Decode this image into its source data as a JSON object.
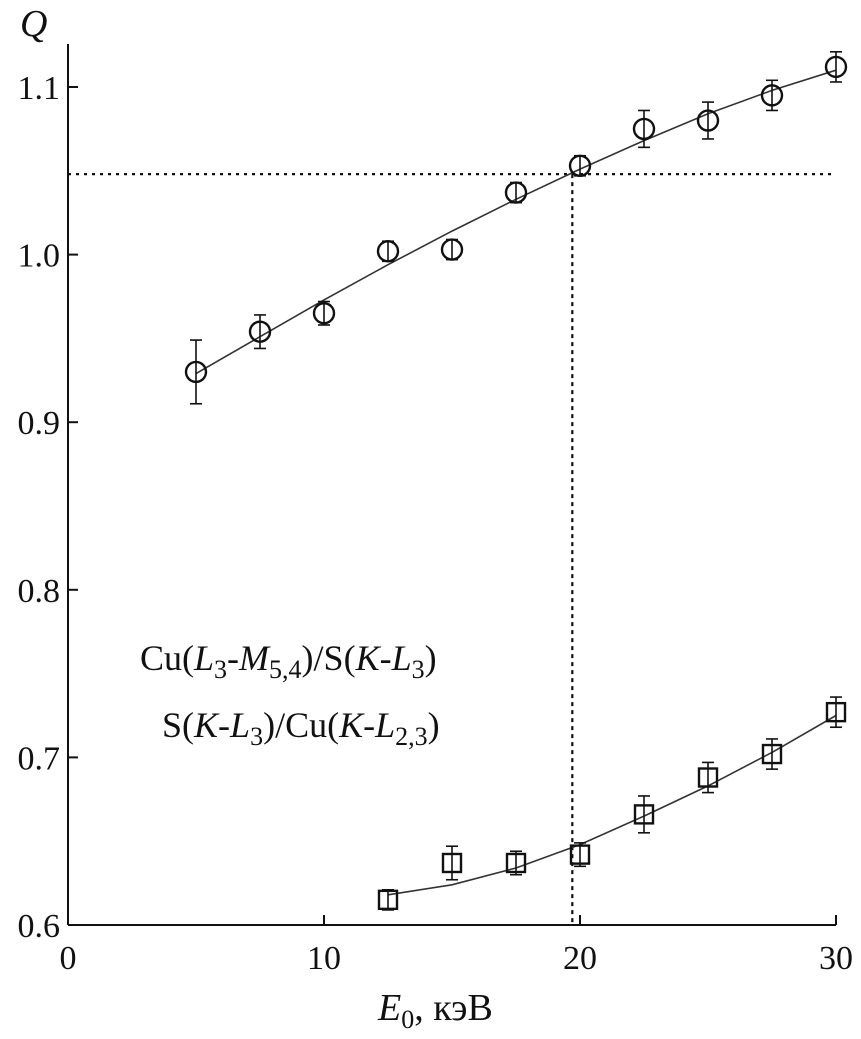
{
  "chart_data": {
    "type": "scatter",
    "xlabel": {
      "main": "E",
      "sub": "0",
      "unit": ", кэВ"
    },
    "ylabel": "Q",
    "xlim": [
      0,
      30
    ],
    "ylim": [
      0.6,
      1.12
    ],
    "x_ticks": [
      "0",
      "10",
      "20",
      "30"
    ],
    "y_ticks": [
      "0.6",
      "0.7",
      "0.8",
      "0.9",
      "1.0",
      "1.1"
    ],
    "reference_lines": {
      "horizontal_y": 1.048,
      "vertical_x": 19.7
    },
    "legend": [
      "Cu(L3-M5,4)/S(K-L3)",
      "S(K-L3)/Cu(K-L2,3)"
    ],
    "series": [
      {
        "name": "Cu(L3-M5,4)/S(K-L3)",
        "marker": "circle",
        "x": [
          5,
          7.5,
          10,
          12.5,
          15,
          17.5,
          20,
          22.5,
          25,
          27.5,
          30
        ],
        "y": [
          0.93,
          0.954,
          0.965,
          1.002,
          1.003,
          1.037,
          1.053,
          1.075,
          1.08,
          1.095,
          1.112
        ],
        "err": [
          0.019,
          0.01,
          0.007,
          0.006,
          0.006,
          0.006,
          0.006,
          0.011,
          0.011,
          0.009,
          0.009
        ],
        "fit": {
          "x": [
            5,
            7.5,
            10,
            12.5,
            15,
            17.5,
            20,
            22.5,
            25,
            27.5,
            30
          ],
          "y": [
            0.929,
            0.951,
            0.973,
            0.994,
            1.014,
            1.033,
            1.051,
            1.068,
            1.084,
            1.098,
            1.11
          ]
        }
      },
      {
        "name": "S(K-L3)/Cu(K-L2,3)",
        "marker": "square",
        "x": [
          12.5,
          15,
          17.5,
          20,
          22.5,
          25,
          27.5,
          30
        ],
        "y": [
          0.615,
          0.637,
          0.637,
          0.642,
          0.666,
          0.688,
          0.702,
          0.727
        ],
        "err": [
          0.006,
          0.01,
          0.007,
          0.007,
          0.011,
          0.009,
          0.009,
          0.009
        ],
        "fit": {
          "x": [
            12.5,
            15,
            17.5,
            20,
            22.5,
            25,
            27.5,
            30
          ],
          "y": [
            0.618,
            0.624,
            0.634,
            0.648,
            0.665,
            0.683,
            0.703,
            0.725
          ]
        }
      }
    ]
  }
}
